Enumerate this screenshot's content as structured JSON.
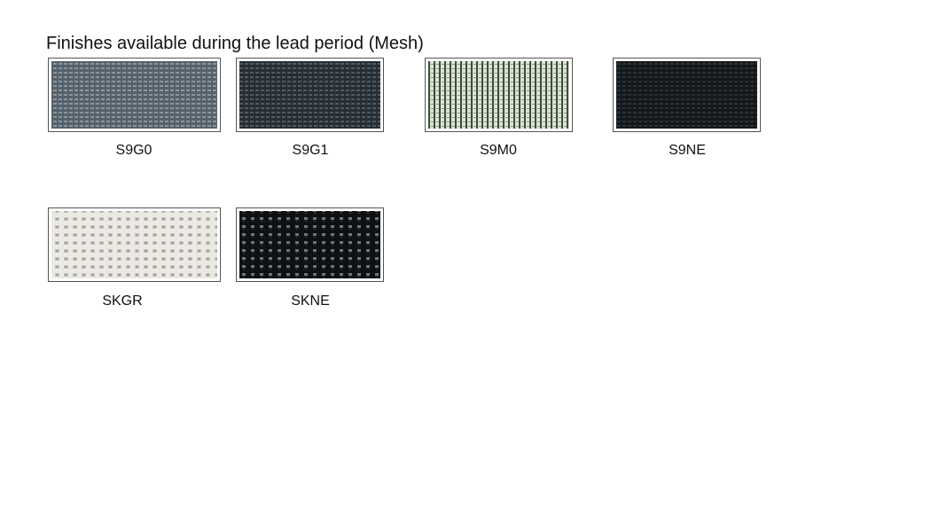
{
  "header": {
    "title": "Finishes available during the lead period (Mesh)"
  },
  "swatches": [
    {
      "code": "S9G0"
    },
    {
      "code": "S9G1"
    },
    {
      "code": "S9M0"
    },
    {
      "code": "S9NE"
    },
    {
      "code": "SKGR"
    },
    {
      "code": "SKNE"
    }
  ]
}
